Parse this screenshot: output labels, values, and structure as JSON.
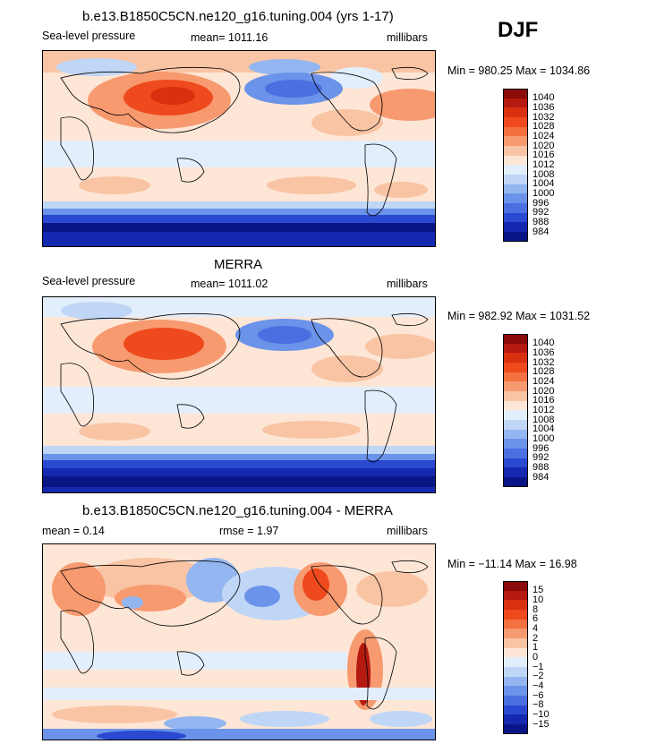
{
  "season": "DJF",
  "panels": [
    {
      "title": "b.e13.B1850C5CN.ne120_g16.tuning.004 (yrs 1-17)",
      "variable": "Sea-level pressure",
      "stat": "mean= 1011.16",
      "units": "millibars",
      "minmax": "Min = 980.25 Max = 1034.86",
      "palette": "pressure"
    },
    {
      "title": "MERRA",
      "variable": "Sea-level pressure",
      "stat": "mean= 1011.02",
      "units": "millibars",
      "minmax": "Min = 982.92 Max = 1031.52",
      "palette": "pressure"
    },
    {
      "title": "b.e13.B1850C5CN.ne120_g16.tuning.004 - MERRA",
      "variable": "mean =   0.14",
      "stat": "rmse =   1.97",
      "units": "millibars",
      "minmax": "Min = −11.14 Max =   16.98",
      "palette": "diff"
    }
  ],
  "colorbars": {
    "pressure": {
      "labels": [
        "1040",
        "1036",
        "1032",
        "1028",
        "1024",
        "1020",
        "1016",
        "1012",
        "1008",
        "1004",
        "1000",
        "996",
        "992",
        "988",
        "984"
      ],
      "colors": [
        "#8b0a0a",
        "#b51a10",
        "#d9300f",
        "#ee4a1d",
        "#f4703f",
        "#f79a70",
        "#f9c4a4",
        "#fde6d6",
        "#e3eefc",
        "#c0d6f6",
        "#93b6f0",
        "#6b93e9",
        "#4a6fe1",
        "#2a49d0",
        "#1428b0",
        "#0a1585"
      ]
    },
    "diff": {
      "labels": [
        "15",
        "10",
        "8",
        "6",
        "4",
        "2",
        "1",
        "0",
        "−1",
        "−2",
        "−4",
        "−6",
        "−8",
        "−10",
        "−15"
      ],
      "colors": [
        "#8b0a0a",
        "#b51a10",
        "#d9300f",
        "#ee4a1d",
        "#f4703f",
        "#f79a70",
        "#f9c4a4",
        "#fde6d6",
        "#e3eefc",
        "#c0d6f6",
        "#93b6f0",
        "#6b93e9",
        "#4a6fe1",
        "#2a49d0",
        "#1428b0",
        "#0a1585"
      ]
    }
  }
}
